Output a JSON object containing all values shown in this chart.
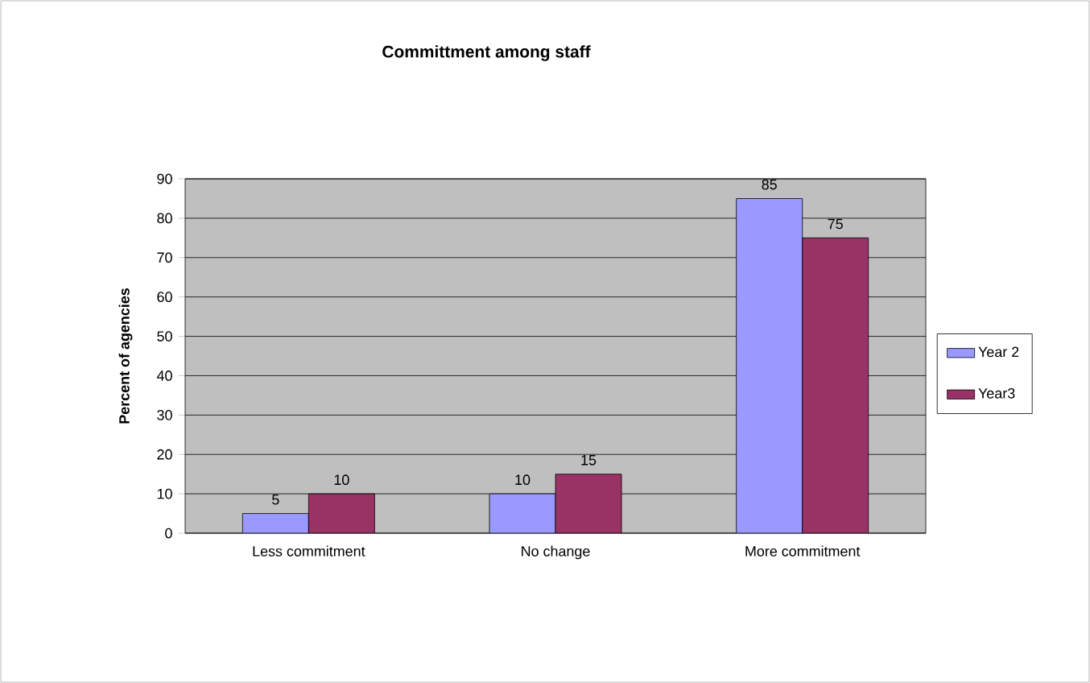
{
  "chart_data": {
    "type": "bar",
    "title": "Committment among staff",
    "ylabel": "Percent of agencies",
    "categories": [
      "Less commitment",
      "No change",
      "More commitment"
    ],
    "series": [
      {
        "name": "Year 2",
        "color": "#9999ff",
        "values": [
          5,
          10,
          85
        ]
      },
      {
        "name": "Year3",
        "color": "#993366",
        "values": [
          10,
          15,
          75
        ]
      }
    ],
    "ylim": [
      0,
      90
    ],
    "yticks": [
      0,
      10,
      20,
      30,
      40,
      50,
      60,
      70,
      80,
      90
    ],
    "grid": "y",
    "legend": "right",
    "data_labels": true
  }
}
